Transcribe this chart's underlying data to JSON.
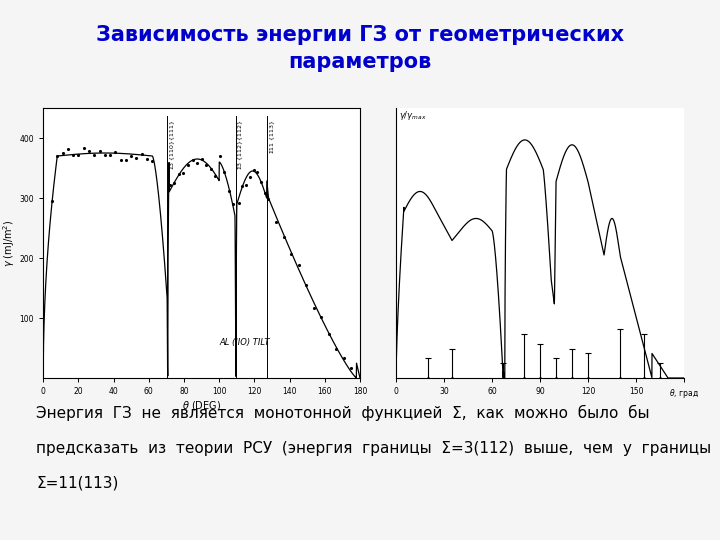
{
  "title_line1": "Зависимость энергии ГЗ от геометрических",
  "title_line2": "параметров",
  "title_color": "#0000CC",
  "title_fontsize": 15,
  "bg_color": "#F5F5F5",
  "body_text_line1": "Энергия  ГЗ  не  является  монотонной  функцией  Σ,  как  можно  было  бы",
  "body_text_line2": "предсказать  из  теории  РСУ  (энергия  границы  Σ=3(112)  выше,  чем  у  границы",
  "body_text_line3": "Σ=11(113)",
  "body_fontsize": 11,
  "body_color": "#000000"
}
